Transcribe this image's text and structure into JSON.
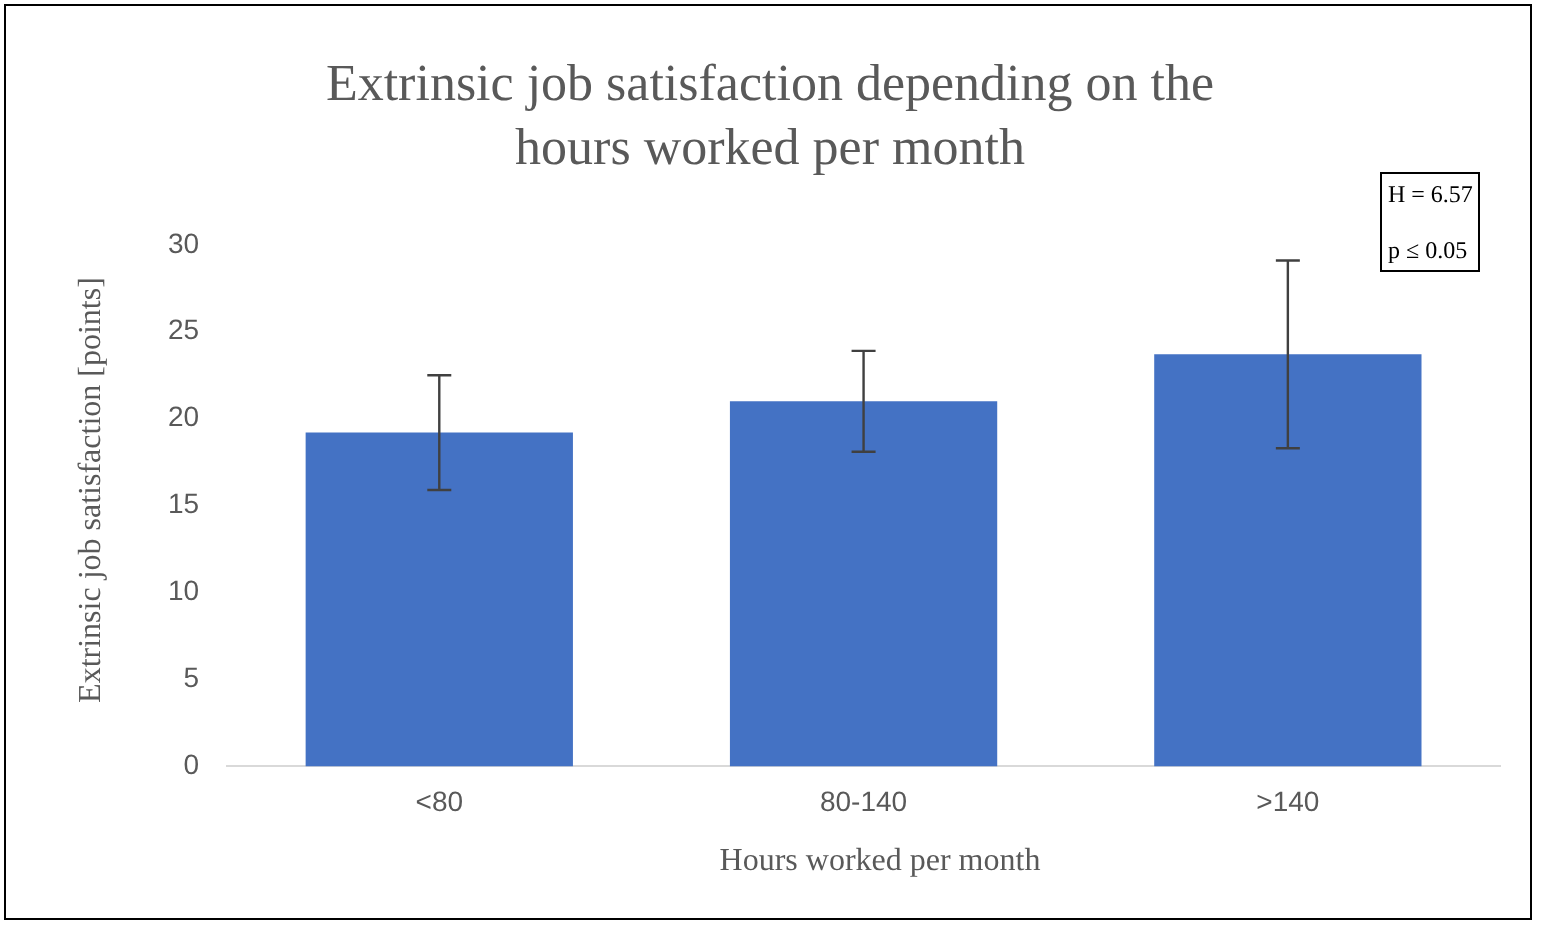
{
  "chart_data": {
    "type": "bar",
    "title": "Extrinsic job satisfaction depending on the hours worked per month",
    "xlabel": "Hours worked per month",
    "ylabel": "Extrinsic job satisfaction [points]",
    "categories": [
      "<80",
      "80-140",
      ">140"
    ],
    "values": [
      19.2,
      21.0,
      23.7
    ],
    "errors": [
      3.3,
      2.9,
      5.4
    ],
    "color": "#4472c4",
    "ylim": [
      0,
      30
    ],
    "yticks": [
      0,
      5,
      10,
      15,
      20,
      25,
      30
    ],
    "grid": false,
    "annotations": [
      "H = 6.57",
      "p ≤ 0.05"
    ]
  }
}
